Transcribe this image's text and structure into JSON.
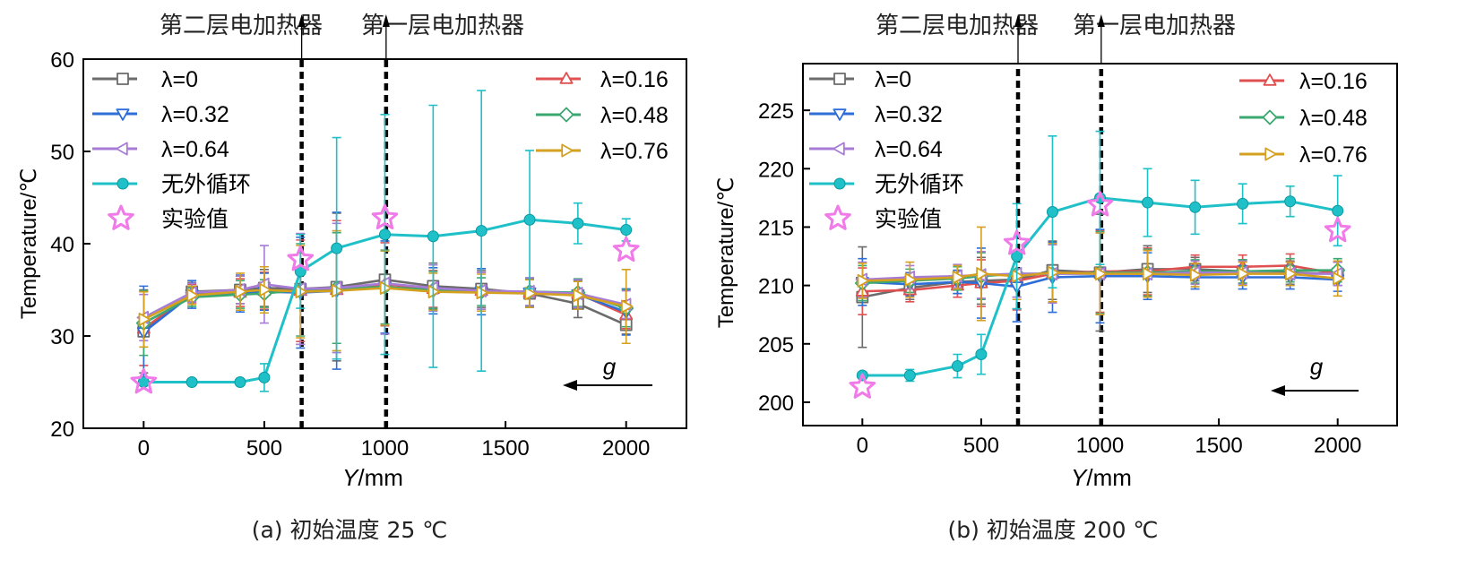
{
  "chart_data": [
    {
      "type": "line",
      "caption": "(a) 初始温度 25 ℃",
      "xlabel_italic": "Y",
      "xlabel_unit": "/mm",
      "ylabel": "Temperature/℃",
      "xlim": [
        -250,
        2250
      ],
      "ylim": [
        20,
        60
      ],
      "xticks": [
        0,
        500,
        1000,
        1500,
        2000
      ],
      "yticks": [
        20,
        30,
        40,
        50,
        60
      ],
      "heater_labels": [
        "第二层电加热器",
        "第一层电加热器"
      ],
      "heater_positions": [
        655,
        1005
      ],
      "gravity_label": "g",
      "series": [
        {
          "name": "λ=0",
          "color": "#6b6b6b",
          "marker": "square",
          "x": [
            0,
            200,
            400,
            500,
            650,
            800,
            1000,
            1200,
            1400,
            1600,
            1800,
            2000
          ],
          "y": [
            30.5,
            34.8,
            35.0,
            35.2,
            35.1,
            35.3,
            36.1,
            35.4,
            35.1,
            34.6,
            33.5,
            31.2
          ],
          "err": [
            4.5,
            1.0,
            1.5,
            2.0,
            6.0,
            8.0,
            5.0,
            2.5,
            2.0,
            1.5,
            1.5,
            1.0
          ]
        },
        {
          "name": "λ=0.16",
          "color": "#e05050",
          "marker": "triangle-up",
          "x": [
            0,
            200,
            400,
            500,
            650,
            800,
            1000,
            1200,
            1400,
            1600,
            1800,
            2000
          ],
          "y": [
            30.8,
            34.6,
            34.7,
            34.9,
            34.9,
            35.0,
            35.6,
            35.1,
            34.9,
            34.7,
            34.6,
            32.3
          ],
          "err": [
            4.0,
            1.0,
            1.5,
            2.0,
            5.5,
            7.5,
            4.5,
            2.0,
            2.0,
            1.5,
            1.5,
            1.5
          ]
        },
        {
          "name": "λ=0.32",
          "color": "#2f6ed6",
          "marker": "triangle-down",
          "x": [
            0,
            200,
            400,
            500,
            650,
            800,
            1000,
            1200,
            1400,
            1600,
            1800,
            2000
          ],
          "y": [
            30.4,
            34.5,
            34.6,
            34.8,
            34.7,
            34.9,
            35.3,
            34.9,
            34.8,
            34.7,
            34.5,
            32.6
          ],
          "err": [
            5.0,
            1.5,
            2.0,
            2.0,
            6.0,
            8.5,
            5.0,
            2.5,
            2.5,
            1.5,
            1.5,
            2.5
          ]
        },
        {
          "name": "λ=0.48",
          "color": "#3aa870",
          "marker": "diamond",
          "x": [
            0,
            200,
            400,
            500,
            650,
            800,
            1000,
            1200,
            1400,
            1600,
            1800,
            2000
          ],
          "y": [
            31.4,
            34.2,
            34.5,
            34.6,
            35.0,
            35.2,
            35.3,
            35.0,
            34.8,
            34.8,
            34.7,
            33.0
          ],
          "err": [
            3.5,
            1.0,
            1.5,
            1.5,
            5.0,
            6.0,
            4.0,
            2.0,
            1.5,
            1.5,
            1.5,
            2.0
          ]
        },
        {
          "name": "λ=0.64",
          "color": "#a77bd6",
          "marker": "triangle-left",
          "x": [
            0,
            200,
            400,
            500,
            650,
            800,
            1000,
            1200,
            1400,
            1600,
            1800,
            2000
          ],
          "y": [
            32.0,
            34.7,
            35.0,
            35.6,
            35.1,
            35.2,
            35.7,
            35.2,
            34.9,
            34.8,
            34.6,
            33.4
          ],
          "err": [
            2.5,
            1.0,
            1.5,
            4.2,
            6.0,
            7.0,
            5.5,
            2.5,
            2.0,
            1.5,
            1.5,
            1.5
          ]
        },
        {
          "name": "λ=0.76",
          "color": "#d4a020",
          "marker": "triangle-right",
          "x": [
            0,
            200,
            400,
            500,
            650,
            800,
            1000,
            1200,
            1400,
            1600,
            1800,
            2000
          ],
          "y": [
            31.8,
            34.4,
            34.8,
            35.0,
            34.8,
            34.9,
            35.2,
            34.8,
            34.7,
            34.6,
            34.4,
            33.2
          ],
          "err": [
            3.0,
            1.0,
            2.0,
            2.5,
            5.0,
            6.5,
            4.0,
            2.0,
            2.0,
            1.5,
            1.5,
            4.0
          ]
        },
        {
          "name": "无外循环",
          "color": "#1fc0c8",
          "marker": "circle",
          "x": [
            0,
            200,
            400,
            500,
            650,
            800,
            1000,
            1200,
            1400,
            1600,
            1800,
            2000
          ],
          "y": [
            25.0,
            25.0,
            25.0,
            25.5,
            37.0,
            39.5,
            41.0,
            40.8,
            41.4,
            42.6,
            42.2,
            41.5
          ],
          "err": [
            0,
            0,
            0,
            1.5,
            4.0,
            12.0,
            13.0,
            14.2,
            15.2,
            7.5,
            2.2,
            1.2
          ]
        },
        {
          "name": "实验值",
          "color": "#f07ae8",
          "marker": "star",
          "line": false,
          "x": [
            0,
            650,
            1000,
            2000
          ],
          "y": [
            25.0,
            38.3,
            42.8,
            39.3
          ]
        }
      ]
    },
    {
      "type": "line",
      "caption": "(b) 初始温度 200 ℃",
      "xlabel_italic": "Y",
      "xlabel_unit": "/mm",
      "ylabel": "Temperature/℃",
      "xlim": [
        -250,
        2250
      ],
      "ylim": [
        198,
        229
      ],
      "xticks": [
        0,
        500,
        1000,
        1500,
        2000
      ],
      "yticks": [
        200,
        205,
        210,
        215,
        220,
        225
      ],
      "heater_labels": [
        "第二层电加热器",
        "第一层电加热器"
      ],
      "heater_positions": [
        655,
        1005
      ],
      "gravity_label": "g",
      "series": [
        {
          "name": "λ=0",
          "color": "#6b6b6b",
          "marker": "square",
          "x": [
            0,
            200,
            400,
            500,
            650,
            800,
            1000,
            1200,
            1400,
            1600,
            1800,
            2000
          ],
          "y": [
            209.0,
            209.8,
            210.3,
            210.4,
            210.5,
            211.3,
            211.1,
            211.4,
            211.4,
            211.2,
            211.1,
            211.0
          ],
          "err": [
            4.3,
            1.0,
            1.0,
            2.0,
            2.5,
            2.5,
            5.0,
            2.0,
            1.0,
            1.0,
            1.0,
            1.0
          ]
        },
        {
          "name": "λ=0.16",
          "color": "#e05050",
          "marker": "triangle-up",
          "x": [
            0,
            200,
            400,
            500,
            650,
            800,
            1000,
            1200,
            1400,
            1600,
            1800,
            2000
          ],
          "y": [
            209.5,
            209.6,
            210.0,
            210.2,
            210.4,
            211.0,
            211.2,
            211.2,
            211.6,
            211.6,
            211.7,
            211.0
          ],
          "err": [
            2.0,
            1.0,
            1.0,
            2.0,
            2.5,
            2.5,
            3.5,
            2.0,
            1.0,
            1.0,
            1.0,
            1.0
          ]
        },
        {
          "name": "λ=0.32",
          "color": "#2f6ed6",
          "marker": "triangle-down",
          "x": [
            0,
            200,
            400,
            500,
            650,
            800,
            1000,
            1200,
            1400,
            1600,
            1800,
            2000
          ],
          "y": [
            210.3,
            210.1,
            210.3,
            210.2,
            209.9,
            210.7,
            210.8,
            210.8,
            210.7,
            210.7,
            210.7,
            210.5
          ],
          "err": [
            2.0,
            1.0,
            1.0,
            3.0,
            3.0,
            3.0,
            4.0,
            2.0,
            1.0,
            1.0,
            1.0,
            1.0
          ]
        },
        {
          "name": "λ=0.48",
          "color": "#3aa870",
          "marker": "diamond",
          "x": [
            0,
            200,
            400,
            500,
            650,
            800,
            1000,
            1200,
            1400,
            1600,
            1800,
            2000
          ],
          "y": [
            210.2,
            210.4,
            210.6,
            210.8,
            211.0,
            211.0,
            211.1,
            211.1,
            211.2,
            211.2,
            211.3,
            211.3
          ],
          "err": [
            1.5,
            1.0,
            1.0,
            2.0,
            2.0,
            2.5,
            3.5,
            2.0,
            1.0,
            1.0,
            1.0,
            1.0
          ]
        },
        {
          "name": "λ=0.64",
          "color": "#a77bd6",
          "marker": "triangle-left",
          "x": [
            0,
            200,
            400,
            500,
            650,
            800,
            1000,
            1200,
            1400,
            1600,
            1800,
            2000
          ],
          "y": [
            210.5,
            210.7,
            210.8,
            210.9,
            211.0,
            211.0,
            211.0,
            211.0,
            211.1,
            211.1,
            211.0,
            211.0
          ],
          "err": [
            1.5,
            1.0,
            1.0,
            2.0,
            2.0,
            2.5,
            3.5,
            2.0,
            1.0,
            1.0,
            1.0,
            1.0
          ]
        },
        {
          "name": "λ=0.76",
          "color": "#d4a020",
          "marker": "triangle-right",
          "x": [
            0,
            200,
            400,
            500,
            650,
            800,
            1000,
            1200,
            1400,
            1600,
            1800,
            2000
          ],
          "y": [
            210.4,
            210.5,
            210.7,
            211.0,
            210.8,
            211.1,
            211.0,
            211.0,
            210.9,
            211.0,
            211.0,
            210.6
          ],
          "err": [
            1.5,
            1.5,
            1.0,
            4.0,
            2.0,
            2.5,
            3.5,
            2.0,
            1.0,
            1.0,
            1.0,
            1.5
          ]
        },
        {
          "name": "无外循环",
          "color": "#1fc0c8",
          "marker": "circle",
          "x": [
            0,
            200,
            400,
            500,
            650,
            800,
            1000,
            1200,
            1400,
            1600,
            1800,
            2000
          ],
          "y": [
            202.3,
            202.3,
            203.1,
            204.1,
            212.5,
            216.3,
            217.5,
            217.1,
            216.7,
            217.0,
            217.2,
            216.4
          ],
          "err": [
            0,
            0.5,
            1.0,
            1.7,
            4.5,
            6.5,
            5.7,
            2.9,
            2.3,
            1.7,
            1.3,
            3.0
          ]
        },
        {
          "name": "实验值",
          "color": "#f07ae8",
          "marker": "star",
          "line": false,
          "x": [
            0,
            650,
            1000,
            2000
          ],
          "y": [
            201.3,
            213.6,
            216.9,
            214.7
          ]
        }
      ]
    }
  ]
}
